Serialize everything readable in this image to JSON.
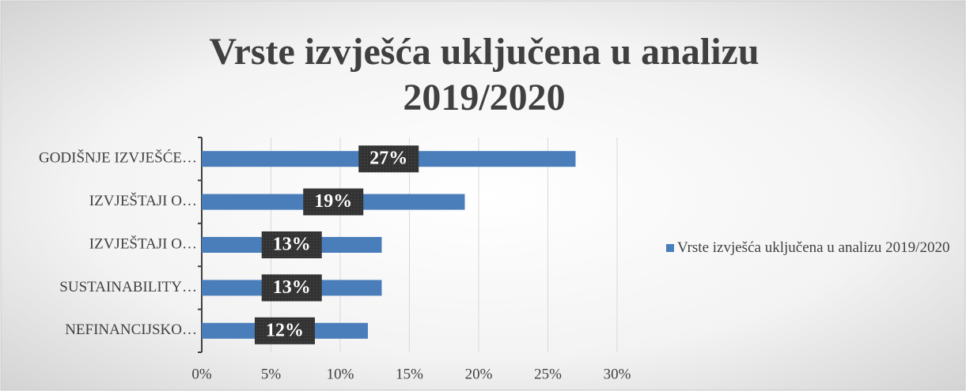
{
  "chart_data": {
    "type": "bar",
    "orientation": "horizontal",
    "title": [
      "Vrste izvješća uključena u analizu",
      "2019/2020"
    ],
    "categories": [
      "GODIŠNJE IZVJEŠĆE…",
      "IZVJEŠTAJI O…",
      "IZVJEŠTAJI O…",
      "SUSTAINABILITY…",
      "NEFINANCIJSKO…"
    ],
    "series": [
      {
        "name": "Vrste izvješća uključena u analizu 2019/2020",
        "color": "#4a7ebb",
        "values": [
          27,
          19,
          13,
          13,
          12
        ],
        "value_labels": [
          "27%",
          "19%",
          "13%",
          "13%",
          "12%"
        ]
      }
    ],
    "xlim": [
      0,
      30
    ],
    "xticks": [
      {
        "value": 0,
        "label": "0%"
      },
      {
        "value": 5,
        "label": "5%"
      },
      {
        "value": 10,
        "label": "10%"
      },
      {
        "value": 15,
        "label": "15%"
      },
      {
        "value": 20,
        "label": "20%"
      },
      {
        "value": 25,
        "label": "25%"
      },
      {
        "value": 30,
        "label": "30%"
      }
    ],
    "grid": true,
    "legend": "right"
  }
}
